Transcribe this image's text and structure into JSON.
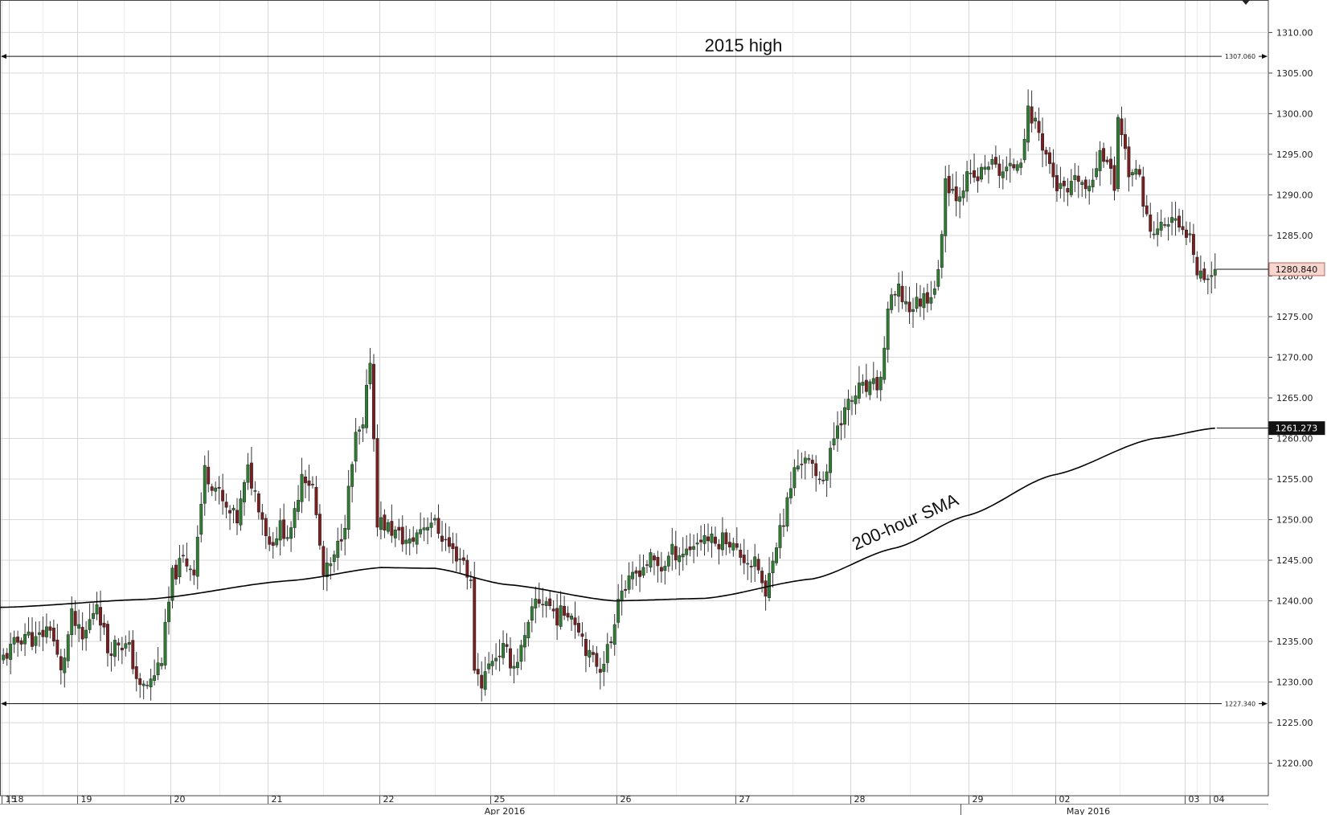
{
  "chart_data": {
    "type": "candlestick",
    "title": "",
    "xlabel": "",
    "ylabel": "",
    "ylim": [
      1216,
      1314
    ],
    "y_ticks": [
      "1220.00",
      "1225.00",
      "1230.00",
      "1235.00",
      "1240.00",
      "1245.00",
      "1250.00",
      "1255.00",
      "1260.00",
      "1265.00",
      "1270.00",
      "1275.00",
      "1280.00",
      "1285.00",
      "1290.00",
      "1295.00",
      "1300.00",
      "1305.00",
      "1310.00"
    ],
    "day_labels": [
      "15",
      "18",
      "19",
      "20",
      "21",
      "22",
      "25",
      "26",
      "27",
      "28",
      "29",
      "02",
      "03",
      "04"
    ],
    "month_labels": [
      "Apr 2016",
      "May 2016"
    ],
    "grid": true,
    "colors": {
      "bull": "#2e7d32",
      "bear": "#7a1f1f",
      "wick": "#333333",
      "sma": "#000000",
      "grid": "#d8d8d8",
      "last_price_tag": "#f7d6cf"
    },
    "anchor_closes": [
      [
        0,
        1233
      ],
      [
        6,
        1236
      ],
      [
        9,
        1235
      ],
      [
        13,
        1237
      ],
      [
        16,
        1231
      ],
      [
        19,
        1238
      ],
      [
        22,
        1235
      ],
      [
        26,
        1240
      ],
      [
        29,
        1234
      ],
      [
        32,
        1235
      ],
      [
        35,
        1234
      ],
      [
        38,
        1229
      ],
      [
        41,
        1230
      ],
      [
        44,
        1233
      ],
      [
        47,
        1243
      ],
      [
        50,
        1245
      ],
      [
        53,
        1244
      ],
      [
        56,
        1256
      ],
      [
        59,
        1254
      ],
      [
        62,
        1251
      ],
      [
        65,
        1250
      ],
      [
        68,
        1256
      ],
      [
        71,
        1252
      ],
      [
        74,
        1247
      ],
      [
        77,
        1249
      ],
      [
        80,
        1248
      ],
      [
        83,
        1256
      ],
      [
        86,
        1254
      ],
      [
        89,
        1243
      ],
      [
        92,
        1245
      ],
      [
        95,
        1250
      ],
      [
        98,
        1260
      ],
      [
        100,
        1261
      ],
      [
        102,
        1270
      ],
      [
        104,
        1250
      ],
      [
        107,
        1249
      ],
      [
        110,
        1248
      ],
      [
        113,
        1247
      ],
      [
        116,
        1249
      ],
      [
        119,
        1250
      ],
      [
        122,
        1248
      ],
      [
        125,
        1246
      ],
      [
        128,
        1245
      ],
      [
        130,
        1242
      ],
      [
        131,
        1232
      ],
      [
        133,
        1230
      ],
      [
        136,
        1233
      ],
      [
        139,
        1234
      ],
      [
        142,
        1232
      ],
      [
        145,
        1235
      ],
      [
        148,
        1240
      ],
      [
        151,
        1240
      ],
      [
        154,
        1238
      ],
      [
        157,
        1239
      ],
      [
        160,
        1237
      ],
      [
        163,
        1233
      ],
      [
        166,
        1232
      ],
      [
        169,
        1235
      ],
      [
        171,
        1241
      ],
      [
        174,
        1242
      ],
      [
        177,
        1244
      ],
      [
        180,
        1245
      ],
      [
        183,
        1244
      ],
      [
        186,
        1246
      ],
      [
        189,
        1246
      ],
      [
        192,
        1247
      ],
      [
        195,
        1248
      ],
      [
        198,
        1247
      ],
      [
        201,
        1248
      ],
      [
        204,
        1246
      ],
      [
        207,
        1245
      ],
      [
        210,
        1244
      ],
      [
        212,
        1240
      ],
      [
        214,
        1246
      ],
      [
        217,
        1250
      ],
      [
        220,
        1256
      ],
      [
        223,
        1258
      ],
      [
        226,
        1255
      ],
      [
        229,
        1256
      ],
      [
        232,
        1262
      ],
      [
        235,
        1264
      ],
      [
        238,
        1266
      ],
      [
        241,
        1266
      ],
      [
        244,
        1267
      ],
      [
        246,
        1276
      ],
      [
        249,
        1278
      ],
      [
        252,
        1276
      ],
      [
        255,
        1277
      ],
      [
        258,
        1278
      ],
      [
        260,
        1280
      ],
      [
        262,
        1292
      ],
      [
        265,
        1290
      ],
      [
        268,
        1292
      ],
      [
        271,
        1292
      ],
      [
        274,
        1294
      ],
      [
        277,
        1293
      ],
      [
        280,
        1293
      ],
      [
        283,
        1295
      ],
      [
        285,
        1300
      ],
      [
        287,
        1299
      ],
      [
        290,
        1295
      ],
      [
        293,
        1291
      ],
      [
        296,
        1290
      ],
      [
        299,
        1292
      ],
      [
        302,
        1290
      ],
      [
        305,
        1296
      ],
      [
        307,
        1294
      ],
      [
        309,
        1291
      ],
      [
        310,
        1300
      ],
      [
        313,
        1293
      ],
      [
        316,
        1292
      ],
      [
        319,
        1285
      ],
      [
        322,
        1286
      ],
      [
        325,
        1287
      ],
      [
        328,
        1285
      ],
      [
        330,
        1286
      ],
      [
        332,
        1281
      ],
      [
        335,
        1280
      ],
      [
        337,
        1280.84
      ]
    ],
    "candle_count": 338,
    "sma_200_hour": {
      "name": "200-hour SMA",
      "points": [
        [
          0,
          1239.2
        ],
        [
          40,
          1240.2
        ],
        [
          80,
          1242.5
        ],
        [
          105,
          1244.1
        ],
        [
          120,
          1244
        ],
        [
          140,
          1242
        ],
        [
          170,
          1240
        ],
        [
          195,
          1240.3
        ],
        [
          225,
          1242.7
        ],
        [
          248,
          1246.5
        ],
        [
          268,
          1250.5
        ],
        [
          292,
          1255.5
        ],
        [
          320,
          1260
        ],
        [
          337,
          1261.273
        ]
      ]
    },
    "horizontal_lines": [
      {
        "label": "2015 high",
        "value": 1307.06,
        "value_text": "1307.060"
      },
      {
        "value": 1227.34,
        "value_text": "1227.340"
      }
    ],
    "annotations": [
      {
        "text": "2015 high"
      },
      {
        "text": "200-hour SMA"
      }
    ],
    "price_tags": [
      {
        "value": 1280.84,
        "text": "1280.840"
      },
      {
        "value": 1261.273,
        "text": "1261.273"
      }
    ]
  }
}
